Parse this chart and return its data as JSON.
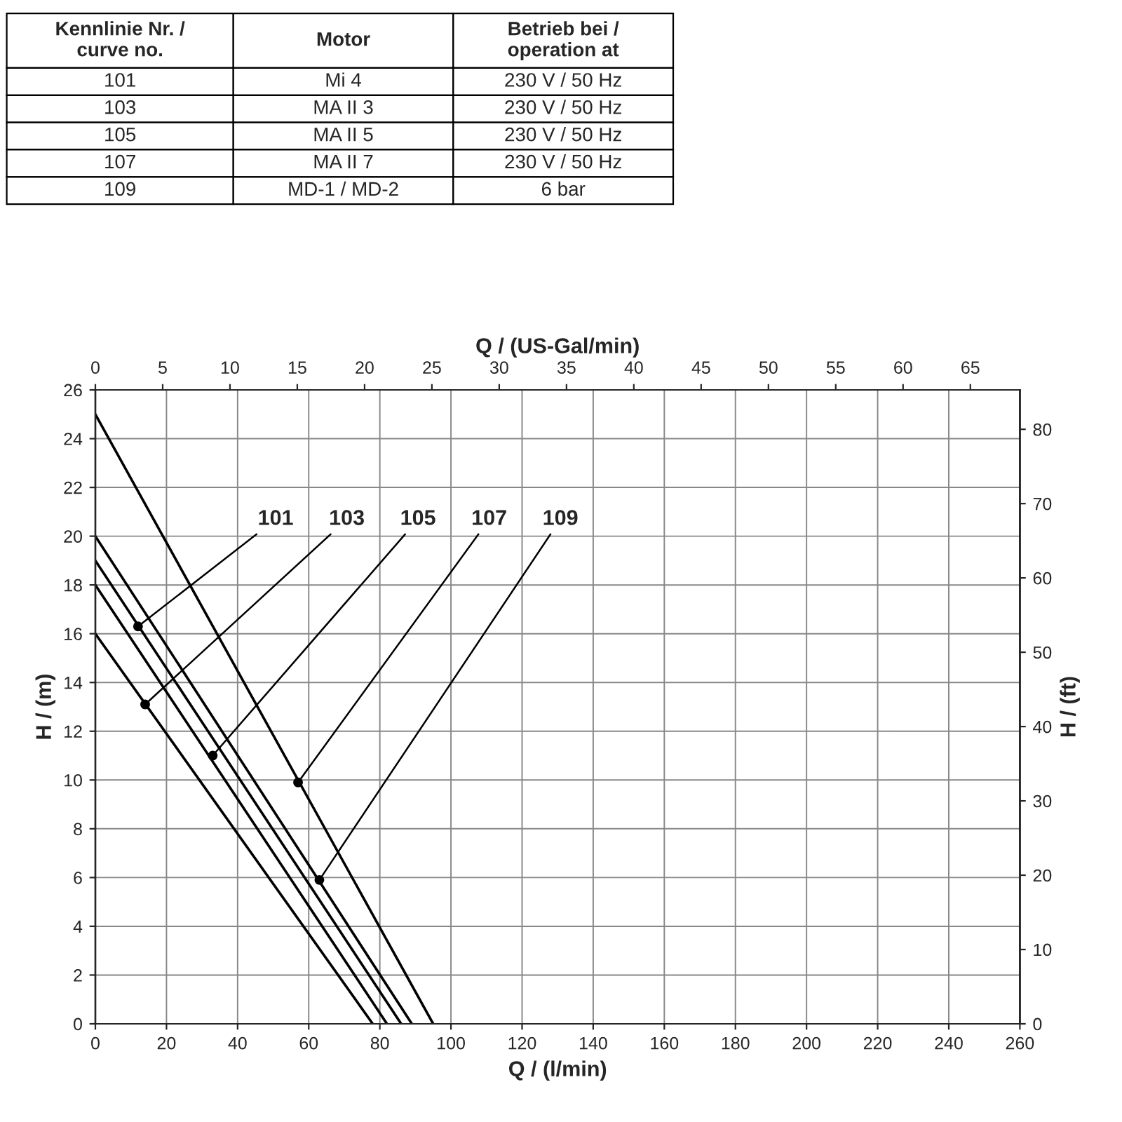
{
  "chart_data": {
    "type": "line",
    "xlabel": "Q / (l/min)",
    "ylabel": "H / (m)",
    "y2label": "H / (ft)",
    "x2label": "Q / (US-Gal/min)",
    "xlim": [
      0,
      260
    ],
    "xticks": [
      0,
      20,
      40,
      60,
      80,
      100,
      120,
      140,
      160,
      180,
      200,
      220,
      240,
      260
    ],
    "ylim": [
      0,
      26
    ],
    "yticks": [
      0,
      2,
      4,
      6,
      8,
      10,
      12,
      14,
      16,
      18,
      20,
      22,
      24,
      26
    ],
    "y2lim": [
      0,
      85.3
    ],
    "y2ticks": [
      0,
      10,
      20,
      30,
      40,
      50,
      60,
      70,
      80
    ],
    "x2lim": [
      0,
      68.68
    ],
    "x2ticks": [
      0,
      5,
      10,
      15,
      20,
      25,
      30,
      35,
      40,
      45,
      50,
      55,
      60,
      65
    ],
    "grid": true,
    "series": [
      {
        "color": "#000000",
        "x": [
          0,
          86
        ],
        "values": [
          19,
          0
        ]
      },
      {
        "color": "#000000",
        "x": [
          0,
          78
        ],
        "values": [
          16,
          0
        ]
      },
      {
        "color": "#000000",
        "x": [
          0,
          82
        ],
        "values": [
          18,
          0
        ]
      },
      {
        "color": "#000000",
        "x": [
          0,
          95
        ],
        "values": [
          25,
          0
        ]
      },
      {
        "color": "#000000",
        "x": [
          0,
          89
        ],
        "values": [
          20,
          0
        ]
      }
    ],
    "annotations": [
      {
        "text": "101",
        "x": 12,
        "y": 16.3
      },
      {
        "text": "103",
        "x": 14,
        "y": 13.1
      },
      {
        "text": "105",
        "x": 33,
        "y": 11
      },
      {
        "text": "107",
        "x": 57,
        "y": 9.9
      },
      {
        "text": "109",
        "x": 63,
        "y": 5.9
      },
      "Kennlinie Nr. /\ncurve no.",
      "Motor",
      "Betrieb bei /\noperation at",
      "101",
      "Mi 4",
      "230 V / 50 Hz",
      "103",
      "MA II 3",
      "230 V / 50 Hz",
      "105",
      "MA II 5",
      "230 V / 50 Hz",
      "107",
      "MA II 7",
      "230 V / 50 Hz",
      "109",
      "MD-1 / MD-2",
      "6 bar"
    ]
  }
}
